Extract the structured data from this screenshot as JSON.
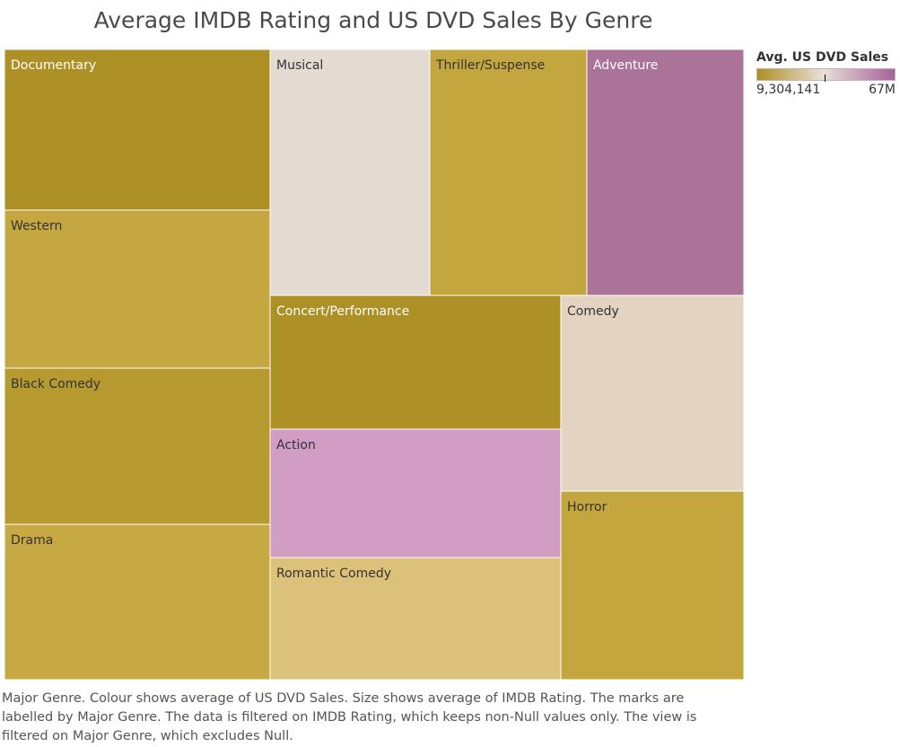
{
  "chart_data": {
    "type": "treemap",
    "title": "Average IMDB Rating and US DVD Sales By Genre",
    "size_measure": "Avg. IMDB Rating",
    "color_measure": "Avg. US DVD Sales",
    "colors": {
      "low": "#b08e20",
      "mid": "#e8e0d8",
      "high": "#a8619a",
      "border": "#ffffff"
    },
    "nodes": [
      {
        "label": "Documentary",
        "color": "#ad9026",
        "text_color": "#ffffff"
      },
      {
        "label": "Western",
        "color": "#c4a741",
        "text_color": "#333333"
      },
      {
        "label": "Black Comedy",
        "color": "#b79a2f",
        "text_color": "#333333"
      },
      {
        "label": "Drama",
        "color": "#c6a943",
        "text_color": "#333333"
      },
      {
        "label": "Musical",
        "color": "#e3dad2",
        "text_color": "#333333"
      },
      {
        "label": "Thriller/Suspense",
        "color": "#c4a63e",
        "text_color": "#333333"
      },
      {
        "label": "Adventure",
        "color": "#ab7398",
        "text_color": "#ffffff"
      },
      {
        "label": "Concert/Performance",
        "color": "#ad9026",
        "text_color": "#ffffff"
      },
      {
        "label": "Comedy",
        "color": "#e3d4c2",
        "text_color": "#333333"
      },
      {
        "label": "Action",
        "color": "#d19dc4",
        "text_color": "#333333"
      },
      {
        "label": "Romantic Comedy",
        "color": "#dcc17b",
        "text_color": "#333333"
      },
      {
        "label": "Horror",
        "color": "#c4a63e",
        "text_color": "#333333"
      }
    ]
  },
  "legend": {
    "title": "Avg. US DVD Sales",
    "min_label": "9,304,141",
    "max_label": "67M"
  },
  "caption": "Major Genre.  Colour shows average of US DVD Sales.  Size shows average of IMDB Rating.  The marks are labelled by Major Genre. The data is filtered on IMDB Rating, which keeps non-Null values only. The view is filtered on Major Genre, which excludes Null."
}
